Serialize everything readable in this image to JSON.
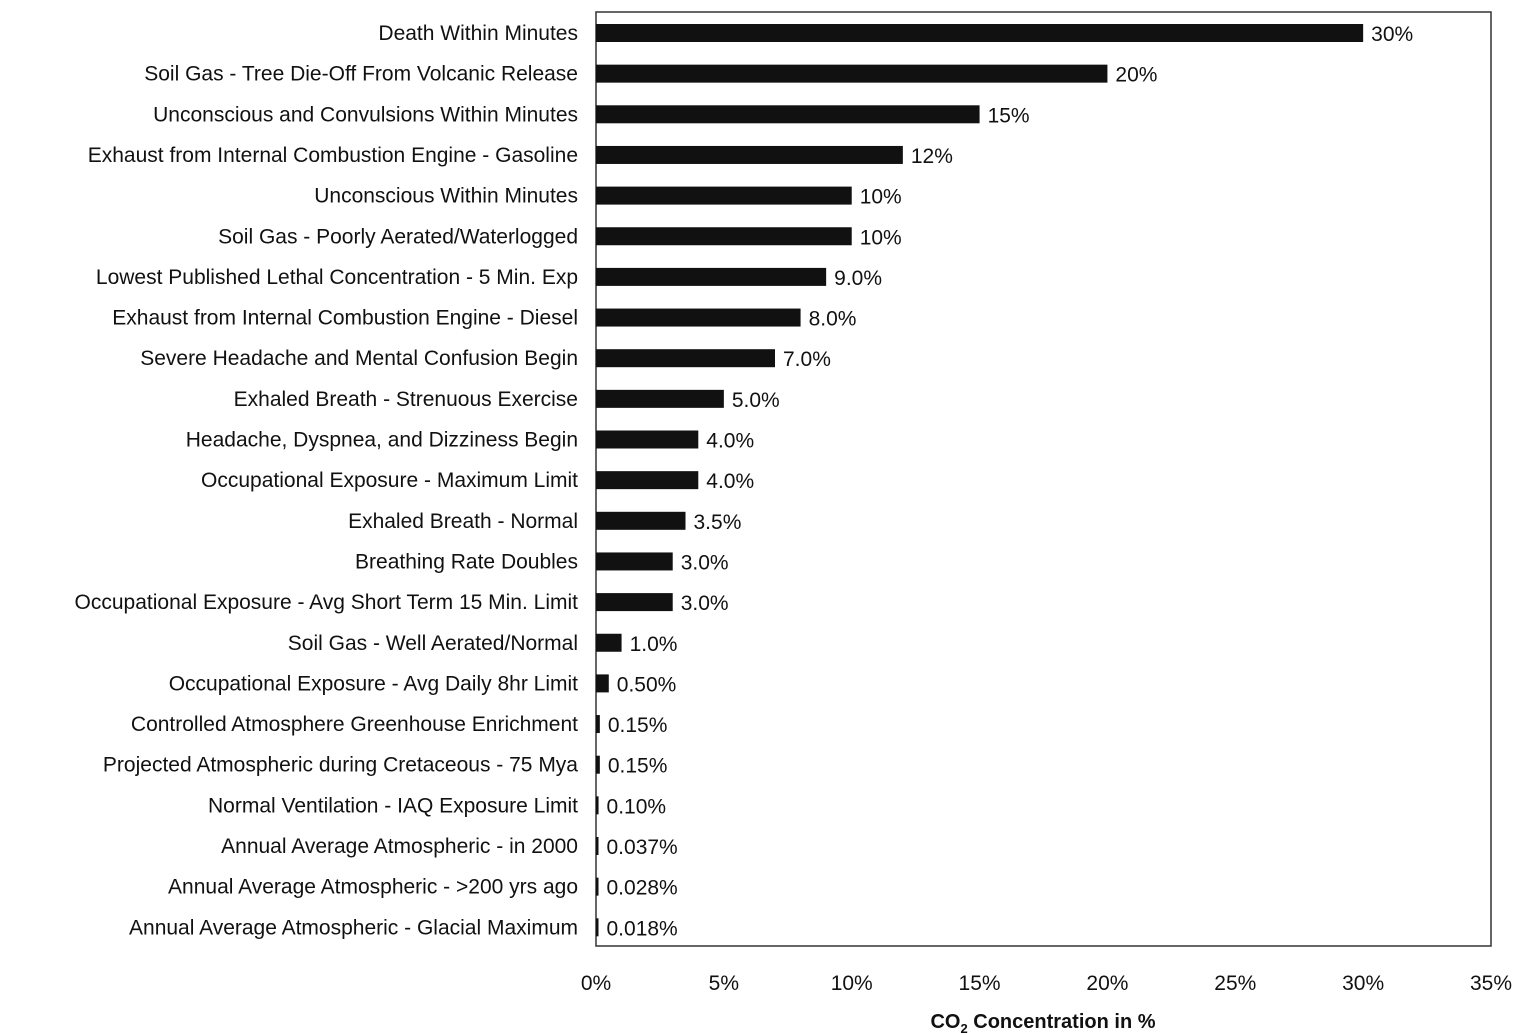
{
  "chart_data": {
    "type": "bar",
    "orientation": "horizontal",
    "categories": [
      "Death Within Minutes",
      "Soil Gas - Tree Die-Off From Volcanic Release",
      "Unconscious and Convulsions Within Minutes",
      "Exhaust from Internal Combustion Engine - Gasoline",
      "Unconscious Within Minutes",
      "Soil Gas - Poorly Aerated/Waterlogged",
      "Lowest Published Lethal Concentration - 5 Min. Exp",
      "Exhaust from Internal Combustion Engine - Diesel",
      "Severe Headache and Mental Confusion Begin",
      "Exhaled Breath - Strenuous Exercise",
      "Headache, Dyspnea, and Dizziness Begin",
      "Occupational Exposure - Maximum Limit",
      "Exhaled Breath - Normal",
      "Breathing Rate Doubles",
      "Occupational Exposure - Avg Short Term 15 Min. Limit",
      "Soil Gas - Well Aerated/Normal",
      "Occupational Exposure -  Avg Daily 8hr Limit",
      "Controlled Atmosphere Greenhouse Enrichment",
      "Projected Atmospheric during Cretaceous - 75 Mya",
      "Normal Ventilation - IAQ Exposure Limit",
      "Annual Average Atmospheric - in 2000",
      "Annual Average Atmospheric - >200 yrs ago",
      "Annual Average Atmospheric - Glacial Maximum"
    ],
    "values": [
      30,
      20,
      15,
      12,
      10,
      10,
      9.0,
      8.0,
      7.0,
      5.0,
      4.0,
      4.0,
      3.5,
      3.0,
      3.0,
      1.0,
      0.5,
      0.15,
      0.15,
      0.1,
      0.037,
      0.028,
      0.018
    ],
    "data_labels": [
      "30%",
      "20%",
      "15%",
      "12%",
      "10%",
      "10%",
      "9.0%",
      "8.0%",
      "7.0%",
      "5.0%",
      "4.0%",
      "4.0%",
      "3.5%",
      "3.0%",
      "3.0%",
      "1.0%",
      "0.50%",
      "0.15%",
      "0.15%",
      "0.10%",
      "0.037%",
      "0.028%",
      "0.018%"
    ],
    "xlim": [
      0,
      35
    ],
    "x_ticks": [
      0,
      5,
      10,
      15,
      20,
      25,
      30,
      35
    ],
    "x_tick_labels": [
      "0%",
      "5%",
      "10%",
      "15%",
      "20%",
      "25%",
      "30%",
      "35%"
    ],
    "xlabel_main": "CO",
    "xlabel_sub": "2",
    "xlabel_rest": " Concentration in %",
    "title": "",
    "grid": false,
    "legend": "none",
    "bar_color": "#111111",
    "frame_color": "#333333"
  }
}
